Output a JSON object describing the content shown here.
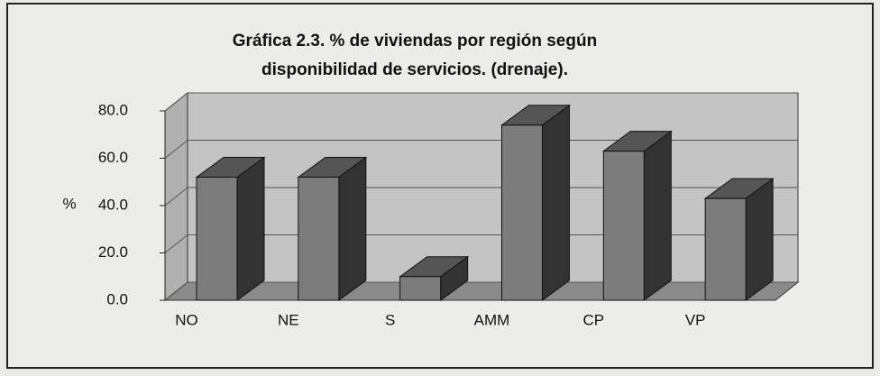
{
  "chart_data": {
    "type": "bar3d",
    "title_lines": [
      "Gráfica 2.3. % de viviendas por región según",
      "disponibilidad de servicios. (drenaje)."
    ],
    "y_label": "%",
    "categories": [
      "NO",
      "NE",
      "S",
      "AMM",
      "CP",
      "VP"
    ],
    "values": [
      52,
      52,
      10,
      74,
      63,
      43
    ],
    "color": "#7c7c7c",
    "ylim": [
      0,
      80
    ],
    "yticks": [
      {
        "value": 0,
        "label": "0.0"
      },
      {
        "value": 20,
        "label": "20.0"
      },
      {
        "value": 40,
        "label": "40.0"
      },
      {
        "value": 60,
        "label": "60.0"
      },
      {
        "value": 80,
        "label": "80.0"
      }
    ],
    "grid": true
  }
}
